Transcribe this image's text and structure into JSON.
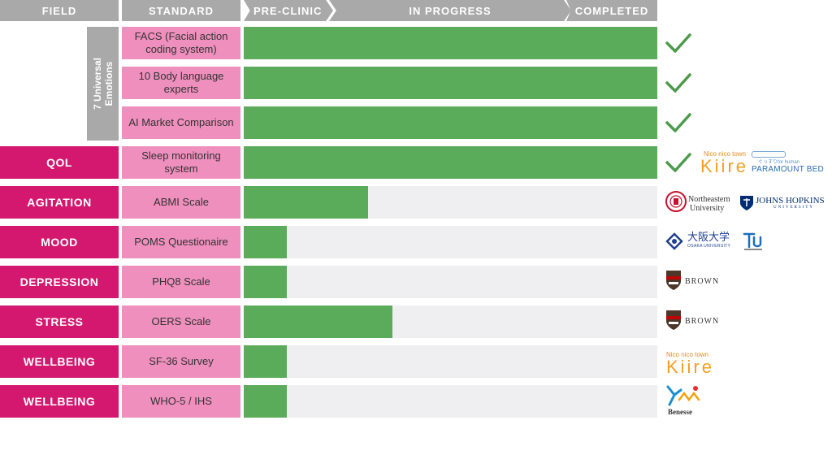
{
  "header": {
    "field": "FIELD",
    "standard": "STANDARD",
    "pre_clinic": "PRE-CLINIC",
    "in_progress": "IN PROGRESS",
    "completed": "COMPLETED"
  },
  "group": {
    "label_line1": "7 Universal",
    "label_line2": "Emotions"
  },
  "rows": [
    {
      "field": "",
      "standard": "FACS (Facial action coding system)",
      "progress": 1.0,
      "completed": true
    },
    {
      "field": "",
      "standard": "10 Body language experts",
      "progress": 1.0,
      "completed": true
    },
    {
      "field": "",
      "standard": "AI Market Comparison",
      "progress": 1.0,
      "completed": true
    },
    {
      "field": "QOL",
      "standard": "Sleep monitoring system",
      "progress": 1.0,
      "completed": true
    },
    {
      "field": "AGITATION",
      "standard": "ABMI Scale",
      "progress": 0.3,
      "completed": false
    },
    {
      "field": "MOOD",
      "standard": "POMS Questionaire",
      "progress": 0.105,
      "completed": false
    },
    {
      "field": "DEPRESSION",
      "standard": "PHQ8 Scale",
      "progress": 0.105,
      "completed": false
    },
    {
      "field": "STRESS",
      "standard": "OERS Scale",
      "progress": 0.36,
      "completed": false
    },
    {
      "field": "WELLBEING",
      "standard": "SF-36 Survey",
      "progress": 0.105,
      "completed": false
    },
    {
      "field": "WELLBEING",
      "standard": "WHO-5 / IHS",
      "progress": 0.105,
      "completed": false
    }
  ],
  "partners": {
    "kiire_small": "Nico nico town",
    "kiire": "Kiire",
    "paramount_small": "ぐっすりfor human",
    "paramount": "PARAMOUNT BED",
    "northeastern_1": "Northeastern",
    "northeastern_2": "University",
    "jhu_1": "JOHNS HOPKINS",
    "jhu_2": "UNIVERSITY",
    "osaka_1": "大阪大学",
    "osaka_2": "OSAKA UNIVERSITY",
    "brown": "BROWN",
    "benesse": "Benesse"
  },
  "colors": {
    "header_gray": "#a9a9a9",
    "field_magenta": "#d4186f",
    "standard_pink": "#ef8fbd",
    "progress_green": "#5aab5a",
    "track_gray": "#efeff1",
    "check_green": "#4c9a4c"
  }
}
